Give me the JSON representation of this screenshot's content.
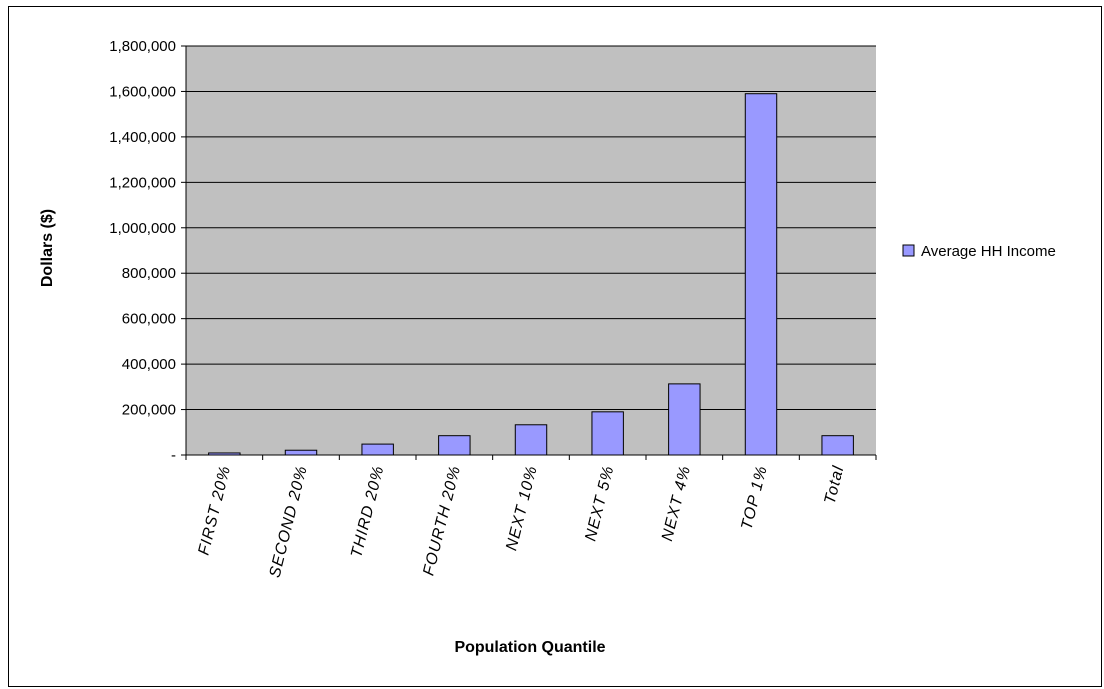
{
  "chart_data": {
    "type": "bar",
    "categories": [
      "FIRST 20%",
      "SECOND 20%",
      "THIRD 20%",
      "FOURTH 20%",
      "NEXT 10%",
      "NEXT 5%",
      "NEXT 4%",
      "TOP 1%",
      "Total"
    ],
    "series": [
      {
        "name": "Average HH Income",
        "values": [
          9000,
          21000,
          48000,
          85000,
          133000,
          190000,
          313000,
          1590000,
          85000
        ]
      }
    ],
    "xlabel": "Population Quantile",
    "ylabel": "Dollars ($)",
    "ylim": [
      0,
      1800000
    ],
    "yticks": [
      {
        "value": 0,
        "label": "-"
      },
      {
        "value": 200000,
        "label": "200,000"
      },
      {
        "value": 400000,
        "label": "400,000"
      },
      {
        "value": 600000,
        "label": "600,000"
      },
      {
        "value": 800000,
        "label": "800,000"
      },
      {
        "value": 1000000,
        "label": "1,000,000"
      },
      {
        "value": 1200000,
        "label": "1,200,000"
      },
      {
        "value": 1400000,
        "label": "1,400,000"
      },
      {
        "value": 1600000,
        "label": "1,600,000"
      },
      {
        "value": 1800000,
        "label": "1,800,000"
      }
    ],
    "grid": true,
    "legend": "right",
    "colors": {
      "plot_background": "#c0c0c0",
      "bar_fill": "#9999ff",
      "bar_stroke": "#000000",
      "gridline": "#000000"
    }
  }
}
